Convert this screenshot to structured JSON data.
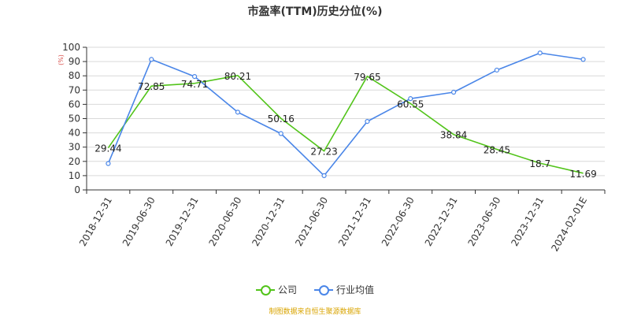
{
  "title": "市盈率(TTM)历史分位(%)",
  "source": "制图数据来自恒生聚源数据库",
  "colors": {
    "company": "#52c41a",
    "industry": "#4a86e8",
    "grid": "#d9d9d9",
    "axis": "#333333"
  },
  "chart_data": {
    "type": "line",
    "title": "市盈率(TTM)历史分位(%)",
    "ylabel": "(%)",
    "xlabel": "",
    "ylim": [
      0,
      100
    ],
    "yticks": [
      0,
      10,
      20,
      30,
      40,
      50,
      60,
      70,
      80,
      90,
      100
    ],
    "grid": true,
    "legend_position": "bottom",
    "categories": [
      "2018-12-31",
      "2019-06-30",
      "2019-12-31",
      "2020-06-30",
      "2020-12-31",
      "2021-06-30",
      "2021-12-31",
      "2022-06-30",
      "2022-12-31",
      "2023-06-30",
      "2023-12-31",
      "2024-02-01E"
    ],
    "series": [
      {
        "name": "公司",
        "color": "#52c41a",
        "values": [
          29.44,
          72.85,
          74.71,
          80.21,
          50.16,
          27.23,
          79.65,
          60.55,
          38.84,
          28.45,
          18.7,
          11.69
        ],
        "labels": [
          "29.44",
          "72.85",
          "74.71",
          "80.21",
          "50.16",
          "27.23",
          "79.65",
          "60.55",
          "38.84",
          "28.45",
          "18.7",
          "11.69"
        ],
        "show_markers": false
      },
      {
        "name": "行业均值",
        "color": "#4a86e8",
        "values": [
          18.5,
          91.5,
          79.5,
          54.5,
          39.5,
          10,
          48,
          64,
          68.5,
          84,
          96,
          91.5
        ],
        "show_markers": true
      }
    ]
  }
}
